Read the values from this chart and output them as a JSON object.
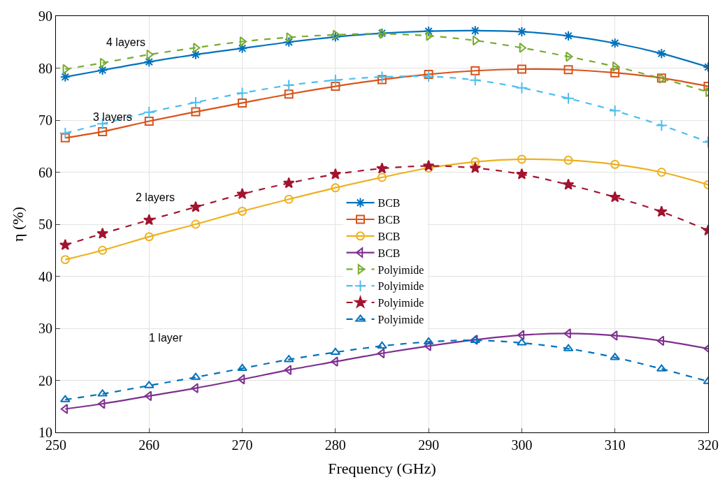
{
  "chart_data": {
    "type": "line",
    "xlabel": "Frequency (GHz)",
    "ylabel": "η (%)",
    "x": [
      251,
      255,
      260,
      265,
      270,
      275,
      280,
      285,
      290,
      295,
      300,
      305,
      310,
      315,
      320
    ],
    "xlim": [
      250,
      320
    ],
    "xticks": [
      250,
      260,
      270,
      280,
      290,
      300,
      310,
      320
    ],
    "ylim": [
      10,
      90
    ],
    "yticks": [
      10,
      20,
      30,
      40,
      50,
      60,
      70,
      80,
      90
    ],
    "grid": true,
    "legend": "center",
    "series": [
      {
        "name": "BCB",
        "color": "#0072bd",
        "marker": "cross",
        "line_style": "solid",
        "values": [
          78.3,
          79.6,
          81.2,
          82.6,
          83.8,
          85.0,
          86.0,
          86.7,
          87.1,
          87.2,
          87.0,
          86.2,
          84.8,
          82.8,
          80.2
        ]
      },
      {
        "name": "BCB",
        "color": "#d95319",
        "marker": "square",
        "line_style": "solid",
        "values": [
          66.6,
          67.8,
          69.8,
          71.6,
          73.3,
          75.0,
          76.5,
          77.8,
          78.8,
          79.5,
          79.8,
          79.7,
          79.1,
          78.1,
          76.5
        ]
      },
      {
        "name": "BCB",
        "color": "#edb120",
        "marker": "circle",
        "line_style": "solid",
        "values": [
          43.2,
          45.0,
          47.6,
          50.0,
          52.5,
          54.8,
          57.0,
          59.0,
          60.8,
          62.0,
          62.5,
          62.3,
          61.5,
          60.0,
          57.6
        ]
      },
      {
        "name": "BCB",
        "color": "#7e2f8e",
        "marker": "triangle-left",
        "line_style": "solid",
        "values": [
          14.5,
          15.5,
          17.0,
          18.5,
          20.2,
          22.0,
          23.6,
          25.2,
          26.6,
          27.8,
          28.7,
          29.0,
          28.6,
          27.6,
          26.1
        ]
      },
      {
        "name": "Polyimide",
        "color": "#77ac30",
        "marker": "triangle-right",
        "line_style": "dashed",
        "values": [
          79.8,
          81.0,
          82.6,
          83.9,
          85.1,
          85.9,
          86.4,
          86.6,
          86.2,
          85.3,
          83.9,
          82.2,
          80.3,
          78.0,
          75.4
        ]
      },
      {
        "name": "Polyimide",
        "color": "#4dbeee",
        "marker": "cross",
        "line_style": "dashed",
        "values": [
          67.5,
          69.3,
          71.5,
          73.4,
          75.2,
          76.7,
          77.7,
          78.3,
          78.4,
          77.7,
          76.2,
          74.2,
          71.8,
          69.0,
          65.8
        ]
      },
      {
        "name": "Polyimide",
        "color": "#a2142f",
        "marker": "star",
        "line_style": "dashed",
        "values": [
          46.0,
          48.2,
          50.8,
          53.3,
          55.8,
          57.9,
          59.6,
          60.7,
          61.2,
          60.8,
          59.6,
          57.6,
          55.2,
          52.4,
          48.8
        ]
      },
      {
        "name": "Polyimide",
        "color": "#0072bd",
        "marker": "triangle-up",
        "line_style": "dashed",
        "values": [
          16.3,
          17.4,
          19.0,
          20.6,
          22.3,
          24.0,
          25.4,
          26.6,
          27.4,
          27.7,
          27.2,
          26.1,
          24.4,
          22.2,
          19.8
        ]
      }
    ],
    "annotations": [
      "4 layers",
      "3 layers",
      "2 layers",
      "1 layer"
    ]
  }
}
